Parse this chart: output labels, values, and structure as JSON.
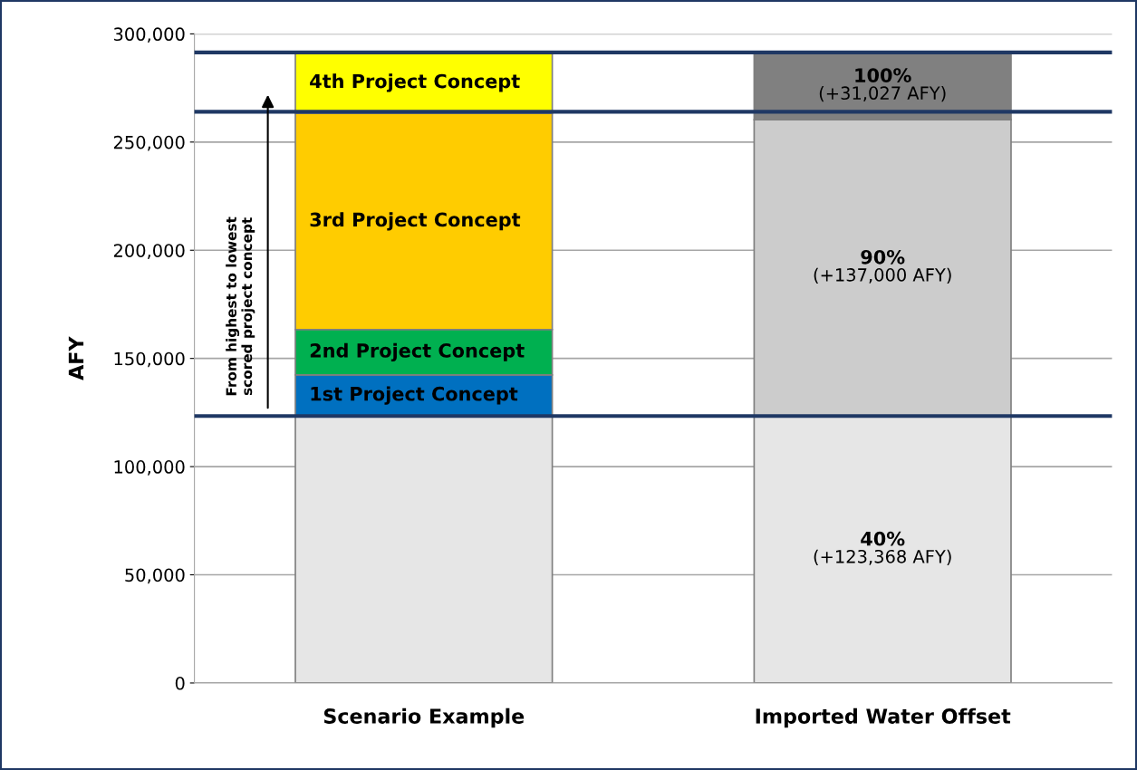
{
  "chart_data": {
    "type": "bar",
    "stacked": true,
    "ylabel": "AFY",
    "categories": [
      "Scenario Example",
      "Imported Water Offset"
    ],
    "series": [
      {
        "colors": [
          "#e6e6e6",
          "#e6e6e6"
        ],
        "values": [
          123368,
          123368
        ],
        "value_labels": [
          null,
          "40%\n(+123,368 AFY)"
        ]
      },
      {
        "name": "1st Project Concept",
        "color": "#0070c0",
        "values": [
          19000,
          null
        ]
      },
      {
        "name": "2nd Project Concept",
        "color": "#00b050",
        "values": [
          21000,
          null
        ]
      },
      {
        "name": "3rd Project Concept",
        "color": "#ffcc00",
        "values": [
          100000,
          null
        ]
      },
      {
        "name": "4th Project Concept",
        "color": "#ffff00",
        "values": [
          28000,
          null
        ]
      },
      {
        "color": "#cccccc",
        "values": [
          null,
          137000
        ],
        "value_labels": [
          null,
          "90%\n(+137,000 AFY)"
        ]
      },
      {
        "color": "#808080",
        "values": [
          null,
          31027
        ],
        "value_labels": [
          null,
          "100%\n(+31,027 AFY)"
        ]
      }
    ],
    "ylim": [
      0,
      300000
    ],
    "yticks": [
      {
        "value": 0,
        "label": "0"
      },
      {
        "value": 50000,
        "label": "50,000"
      },
      {
        "value": 100000,
        "label": "100,000"
      },
      {
        "value": 150000,
        "label": "150,000"
      },
      {
        "value": 200000,
        "label": "200,000"
      },
      {
        "value": 250000,
        "label": "250,000"
      },
      {
        "value": 300000,
        "label": "300,000"
      }
    ],
    "grid": "y",
    "ref_lines": [
      {
        "axis": "y",
        "value": 123368,
        "color": "#1f3864"
      },
      {
        "axis": "y",
        "value": 264000,
        "color": "#1f3864"
      },
      {
        "axis": "y",
        "value": 291395,
        "color": "#1f3864"
      }
    ],
    "annotations": [
      "From highest to lowest\nscored project concept"
    ]
  }
}
